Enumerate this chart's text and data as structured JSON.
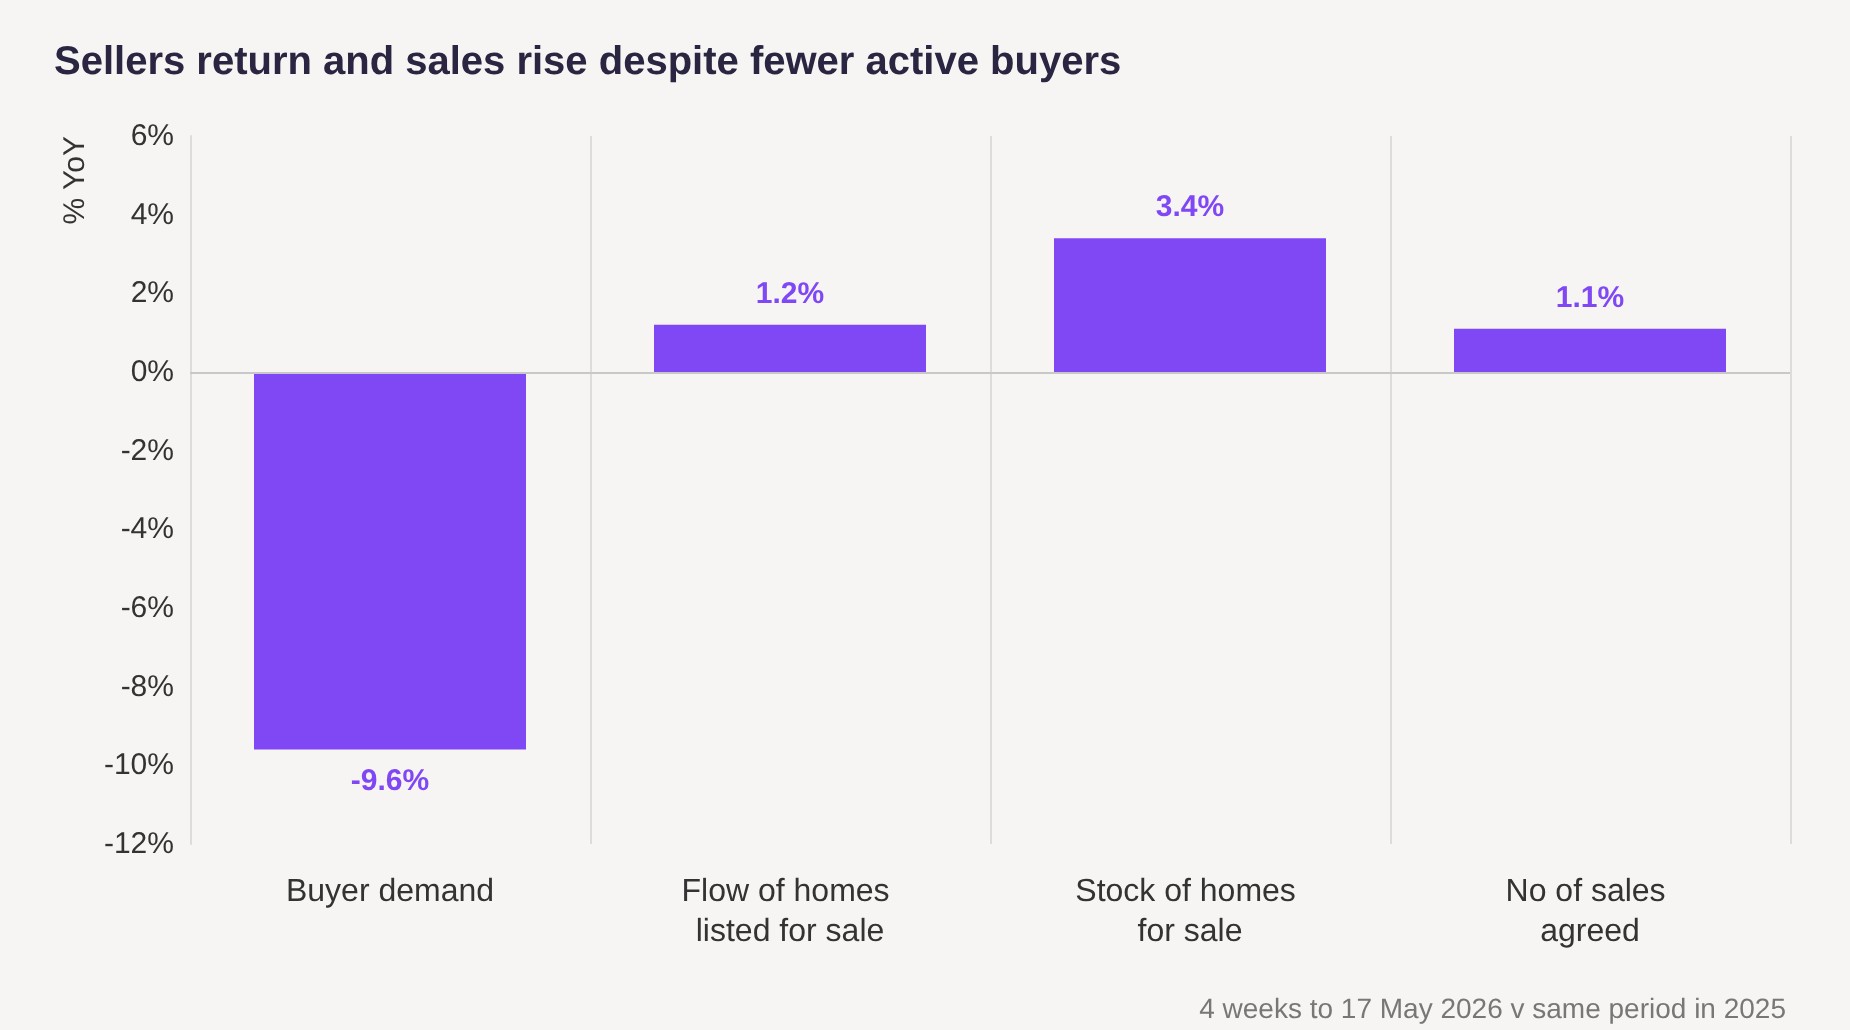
{
  "chart_data": {
    "type": "bar",
    "title": "Sellers return and sales rise despite fewer active buyers",
    "ylabel": "% YoY",
    "categories": [
      "Buyer demand",
      "Flow of homes listed for sale",
      "Stock of homes for sale",
      "No of sales agreed"
    ],
    "values": [
      -9.6,
      1.2,
      3.4,
      1.1
    ],
    "color": "#8047f5",
    "value_labels": [
      "-9.6%",
      "1.2%",
      "3.4%",
      "1.1%"
    ],
    "ylim": [
      -12,
      6
    ],
    "yticks": [
      {
        "value": -12,
        "label": "-12%"
      },
      {
        "value": -10,
        "label": "-10%"
      },
      {
        "value": -8,
        "label": "-8%"
      },
      {
        "value": -6,
        "label": "-6%"
      },
      {
        "value": -4,
        "label": "-4%"
      },
      {
        "value": -2,
        "label": "-2%"
      },
      {
        "value": 0,
        "label": "0%"
      },
      {
        "value": 2,
        "label": "2%"
      },
      {
        "value": 4,
        "label": "4%"
      },
      {
        "value": 6,
        "label": "6%"
      }
    ],
    "grid": "x",
    "annotations": [
      "4 weeks to 17 May 2026 v same period in 2025"
    ]
  }
}
